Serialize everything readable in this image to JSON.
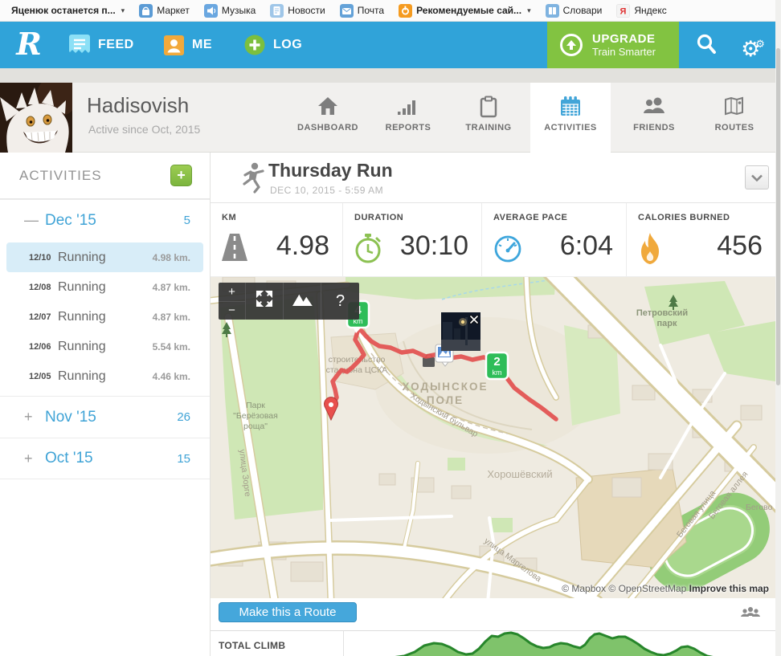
{
  "colors": {
    "nav_blue": "#30a3d9",
    "green": "#82c341",
    "route_red": "#e2504f",
    "marker_green": "#2ebd59",
    "link_blue": "#3fa3d6"
  },
  "browser": {
    "bookmarks": [
      {
        "label": "Яценюк останется п...",
        "caret": "▾"
      },
      {
        "label": "Маркет"
      },
      {
        "label": "Музыка"
      },
      {
        "label": "Новости"
      },
      {
        "label": "Почта"
      },
      {
        "label": "Рекомендуемые сай...",
        "caret": "▾"
      },
      {
        "label": "Словари"
      },
      {
        "label": "Яндекс"
      }
    ]
  },
  "nav": {
    "logo": "R",
    "feed": "FEED",
    "me": "ME",
    "log": "LOG",
    "upgrade_title": "UPGRADE",
    "upgrade_sub": "Train Smarter"
  },
  "profile": {
    "name": "Hadisovish",
    "active_since": "Active since Oct, 2015"
  },
  "tabs": [
    {
      "label": "DASHBOARD"
    },
    {
      "label": "REPORTS"
    },
    {
      "label": "TRAINING"
    },
    {
      "label": "ACTIVITIES",
      "active": true
    },
    {
      "label": "FRIENDS"
    },
    {
      "label": "ROUTES"
    }
  ],
  "sidebar": {
    "title": "ACTIVITIES",
    "add_label": "+",
    "months": [
      {
        "sign": "—",
        "label": "Dec '15",
        "count": "5"
      },
      {
        "sign": "+",
        "label": "Nov '15",
        "count": "26"
      },
      {
        "sign": "+",
        "label": "Oct '15",
        "count": "15"
      }
    ],
    "items": [
      {
        "date": "12/10",
        "name": "Running",
        "dist": "4.98 km."
      },
      {
        "date": "12/08",
        "name": "Running",
        "dist": "4.87 km."
      },
      {
        "date": "12/07",
        "name": "Running",
        "dist": "4.87 km."
      },
      {
        "date": "12/06",
        "name": "Running",
        "dist": "5.54 km."
      },
      {
        "date": "12/05",
        "name": "Running",
        "dist": "4.46 km."
      }
    ]
  },
  "activity": {
    "title": "Thursday Run",
    "date": "DEC 10, 2015  -  5:59 AM"
  },
  "stats": [
    {
      "label": "KM",
      "value": "4.98"
    },
    {
      "label": "DURATION",
      "value": "30:10"
    },
    {
      "label": "AVERAGE PACE",
      "value": "6:04"
    },
    {
      "label": "CALORIES BURNED",
      "value": "456"
    }
  ],
  "map": {
    "controls": {
      "zoom_in": "+",
      "zoom_out": "−",
      "help": "?"
    },
    "markers": [
      {
        "num": "4",
        "unit": "km"
      },
      {
        "num": "2",
        "unit": "km"
      }
    ],
    "labels": [
      "строительство",
      "стадиона ЦСКА",
      "ХОДЫНСКОЕ",
      "ПОЛЕ",
      "Парк",
      "\"Берёзовая",
      "роща\"",
      "улица Зорге",
      "Ходынский бульвар",
      "Хорошёвский",
      "улица Маргелова",
      "Петровский",
      "парк",
      "Беговая улица",
      "Беговая аллея",
      "Бегово"
    ],
    "attribution": {
      "text": "© Mapbox © OpenStreetMap",
      "improve": "Improve this map"
    },
    "route_points": [
      [
        430,
        177
      ],
      [
        412,
        163
      ],
      [
        396,
        152
      ],
      [
        378,
        138
      ],
      [
        366,
        122
      ],
      [
        358,
        110
      ],
      [
        352,
        104
      ],
      [
        340,
        100
      ],
      [
        326,
        103
      ],
      [
        312,
        99
      ],
      [
        298,
        101
      ],
      [
        284,
        96
      ],
      [
        268,
        99
      ],
      [
        252,
        92
      ],
      [
        238,
        94
      ],
      [
        224,
        88
      ],
      [
        210,
        86
      ],
      [
        200,
        80
      ],
      [
        193,
        73
      ],
      [
        187,
        66
      ],
      [
        186,
        60
      ],
      [
        183,
        68
      ],
      [
        180,
        78
      ],
      [
        186,
        88
      ],
      [
        191,
        97
      ],
      [
        184,
        105
      ],
      [
        177,
        112
      ],
      [
        170,
        118
      ],
      [
        163,
        116
      ],
      [
        158,
        122
      ],
      [
        152,
        130
      ],
      [
        155,
        140
      ],
      [
        157,
        150
      ],
      [
        152,
        160
      ],
      [
        150,
        166
      ]
    ]
  },
  "route_bar": {
    "button": "Make this a Route"
  },
  "elevation": {
    "label": "TOTAL CLIMB",
    "points": [
      [
        55,
        44
      ],
      [
        60,
        33
      ],
      [
        75,
        31
      ],
      [
        88,
        26
      ],
      [
        100,
        18
      ],
      [
        112,
        15
      ],
      [
        122,
        16
      ],
      [
        132,
        20
      ],
      [
        142,
        26
      ],
      [
        152,
        29
      ],
      [
        160,
        28
      ],
      [
        168,
        22
      ],
      [
        176,
        13
      ],
      [
        184,
        6
      ],
      [
        192,
        7
      ],
      [
        200,
        3
      ],
      [
        208,
        2
      ],
      [
        216,
        4
      ],
      [
        224,
        9
      ],
      [
        232,
        15
      ],
      [
        240,
        19
      ],
      [
        248,
        21
      ],
      [
        256,
        20
      ],
      [
        262,
        17
      ],
      [
        270,
        15
      ],
      [
        278,
        16
      ],
      [
        286,
        19
      ],
      [
        294,
        21
      ],
      [
        300,
        17
      ],
      [
        306,
        9
      ],
      [
        312,
        4
      ],
      [
        318,
        3
      ],
      [
        326,
        6
      ],
      [
        334,
        9
      ],
      [
        342,
        7
      ],
      [
        350,
        7
      ],
      [
        358,
        11
      ],
      [
        366,
        16
      ],
      [
        374,
        22
      ],
      [
        382,
        26
      ],
      [
        390,
        29
      ],
      [
        398,
        30
      ],
      [
        406,
        28
      ],
      [
        414,
        24
      ],
      [
        420,
        20
      ],
      [
        428,
        19
      ],
      [
        436,
        22
      ],
      [
        444,
        27
      ],
      [
        452,
        31
      ],
      [
        462,
        33
      ],
      [
        475,
        44
      ]
    ]
  }
}
